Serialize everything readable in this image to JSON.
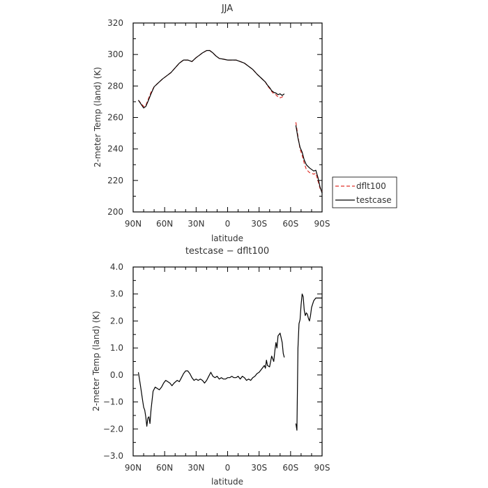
{
  "chart_data": [
    {
      "type": "line",
      "title": "JJA",
      "xlabel": "latitude",
      "ylabel": "2-meter Temp (land) (K)",
      "xlim": [
        90,
        -90
      ],
      "ylim": [
        200,
        320
      ],
      "x_tick_values": [
        90,
        60,
        30,
        0,
        -30,
        -60,
        -90
      ],
      "x_tick_labels": [
        "90N",
        "60N",
        "30N",
        "0",
        "30S",
        "60S",
        "90S"
      ],
      "y_tick_values": [
        200,
        220,
        240,
        260,
        280,
        300,
        320
      ],
      "y_tick_labels": [
        "200",
        "220",
        "240",
        "260",
        "280",
        "300",
        "320"
      ],
      "grid": false,
      "legend_position": "outside-right-bottom",
      "series": [
        {
          "name": "dflt100",
          "color": "#e0302a",
          "dash": true,
          "segments": [
            [
              [
                85,
                271
              ],
              [
                82,
                268.5
              ],
              [
                80,
                267
              ],
              [
                78,
                267.5
              ],
              [
                76,
                271
              ],
              [
                73,
                276
              ],
              [
                70,
                279.5
              ],
              [
                66,
                282
              ],
              [
                62,
                284.5
              ],
              [
                58,
                286.5
              ],
              [
                54,
                288.5
              ],
              [
                50,
                291.5
              ],
              [
                46,
                294.5
              ],
              [
                42,
                296.5
              ],
              [
                38,
                296.5
              ],
              [
                34,
                295.5
              ],
              [
                30,
                298
              ],
              [
                27,
                299.5
              ],
              [
                24,
                301
              ],
              [
                20,
                302.5
              ],
              [
                17,
                302.5
              ],
              [
                14,
                301
              ],
              [
                11,
                299
              ],
              [
                8,
                297.5
              ],
              [
                4,
                297
              ],
              [
                0,
                296.5
              ],
              [
                -4,
                296.5
              ],
              [
                -8,
                296.5
              ],
              [
                -12,
                295.5
              ],
              [
                -16,
                294.5
              ],
              [
                -20,
                292.5
              ],
              [
                -24,
                290.5
              ],
              [
                -28,
                287.5
              ],
              [
                -32,
                285
              ],
              [
                -36,
                282.5
              ],
              [
                -38,
                280
              ],
              [
                -40,
                278.5
              ],
              [
                -42,
                276.5
              ],
              [
                -44,
                275
              ],
              [
                -46,
                274.5
              ],
              [
                -48,
                273
              ],
              [
                -50,
                272.5
              ],
              [
                -52,
                273
              ],
              [
                -54,
                274
              ]
            ],
            [
              [
                -65,
                257
              ],
              [
                -67,
                248
              ],
              [
                -69,
                240
              ],
              [
                -71,
                236
              ],
              [
                -73,
                231
              ],
              [
                -75,
                227
              ],
              [
                -78,
                225
              ],
              [
                -82,
                224
              ],
              [
                -84,
                224.5
              ],
              [
                -86,
                220
              ],
              [
                -88,
                215
              ],
              [
                -90,
                213
              ]
            ]
          ]
        },
        {
          "name": "testcase",
          "color": "#000000",
          "dash": false,
          "segments": [
            [
              [
                85,
                271
              ],
              [
                82,
                268
              ],
              [
                80,
                266
              ],
              [
                78,
                267
              ],
              [
                76,
                270
              ],
              [
                73,
                275
              ],
              [
                70,
                279.5
              ],
              [
                66,
                282
              ],
              [
                62,
                284.5
              ],
              [
                58,
                286.5
              ],
              [
                54,
                288.5
              ],
              [
                50,
                291.5
              ],
              [
                46,
                294.5
              ],
              [
                42,
                296.5
              ],
              [
                38,
                296.5
              ],
              [
                34,
                295.5
              ],
              [
                30,
                298
              ],
              [
                27,
                299.5
              ],
              [
                24,
                301
              ],
              [
                20,
                302.5
              ],
              [
                17,
                302.5
              ],
              [
                14,
                301
              ],
              [
                11,
                299
              ],
              [
                8,
                297.5
              ],
              [
                4,
                297
              ],
              [
                0,
                296.5
              ],
              [
                -4,
                296.5
              ],
              [
                -8,
                296.5
              ],
              [
                -12,
                295.5
              ],
              [
                -16,
                294.5
              ],
              [
                -20,
                292.5
              ],
              [
                -24,
                290.5
              ],
              [
                -28,
                287.5
              ],
              [
                -32,
                285
              ],
              [
                -36,
                282.5
              ],
              [
                -38,
                280.5
              ],
              [
                -40,
                279
              ],
              [
                -42,
                277
              ],
              [
                -44,
                276
              ],
              [
                -46,
                275.5
              ],
              [
                -48,
                274.5
              ],
              [
                -50,
                275
              ],
              [
                -52,
                274
              ],
              [
                -54,
                275
              ]
            ],
            [
              [
                -65,
                255
              ],
              [
                -67,
                247
              ],
              [
                -69,
                241
              ],
              [
                -71,
                238
              ],
              [
                -73,
                233
              ],
              [
                -75,
                230
              ],
              [
                -78,
                228
              ],
              [
                -82,
                226
              ],
              [
                -84,
                226.5
              ],
              [
                -86,
                222
              ],
              [
                -88,
                216
              ],
              [
                -90,
                212
              ]
            ]
          ]
        }
      ]
    },
    {
      "type": "line",
      "title": "testcase − dflt100",
      "xlabel": "latitude",
      "ylabel": "2-meter Temp (land) (K)",
      "xlim": [
        90,
        -90
      ],
      "ylim": [
        -3.0,
        4.0
      ],
      "x_tick_values": [
        90,
        60,
        30,
        0,
        -30,
        -60,
        -90
      ],
      "x_tick_labels": [
        "90N",
        "60N",
        "30N",
        "0",
        "30S",
        "60S",
        "90S"
      ],
      "y_tick_values": [
        -3.0,
        -2.0,
        -1.0,
        0.0,
        1.0,
        2.0,
        3.0,
        4.0
      ],
      "y_tick_labels": [
        "−3.0",
        "−2.0",
        "−1.0",
        "0.0",
        "1.0",
        "2.0",
        "3.0",
        "4.0"
      ],
      "grid": false,
      "series": [
        {
          "color": "#000000",
          "dash": false,
          "segments": [
            [
              [
                85,
                0.1
              ],
              [
                83,
                -0.4
              ],
              [
                81,
                -0.95
              ],
              [
                80,
                -1.2
              ],
              [
                79,
                -1.3
              ],
              [
                78,
                -1.55
              ],
              [
                77,
                -1.9
              ],
              [
                76,
                -1.6
              ],
              [
                75,
                -1.55
              ],
              [
                74,
                -1.8
              ],
              [
                73,
                -1.3
              ],
              [
                71,
                -0.6
              ],
              [
                69,
                -0.45
              ],
              [
                67,
                -0.5
              ],
              [
                65,
                -0.55
              ],
              [
                63,
                -0.45
              ],
              [
                61,
                -0.3
              ],
              [
                59,
                -0.2
              ],
              [
                57,
                -0.25
              ],
              [
                55,
                -0.3
              ],
              [
                53,
                -0.4
              ],
              [
                51,
                -0.3
              ],
              [
                48,
                -0.2
              ],
              [
                46,
                -0.25
              ],
              [
                44,
                -0.1
              ],
              [
                42,
                0.05
              ],
              [
                40,
                0.15
              ],
              [
                38,
                0.15
              ],
              [
                36,
                0.05
              ],
              [
                34,
                -0.1
              ],
              [
                32,
                -0.2
              ],
              [
                30,
                -0.15
              ],
              [
                28,
                -0.2
              ],
              [
                26,
                -0.15
              ],
              [
                24,
                -0.2
              ],
              [
                22,
                -0.3
              ],
              [
                20,
                -0.2
              ],
              [
                18,
                -0.05
              ],
              [
                16,
                0.1
              ],
              [
                14,
                -0.05
              ],
              [
                12,
                -0.1
              ],
              [
                10,
                -0.05
              ],
              [
                8,
                -0.15
              ],
              [
                6,
                -0.1
              ],
              [
                4,
                -0.15
              ],
              [
                2,
                -0.15
              ],
              [
                0,
                -0.1
              ],
              [
                -2,
                -0.1
              ],
              [
                -4,
                -0.05
              ],
              [
                -6,
                -0.1
              ],
              [
                -8,
                -0.1
              ],
              [
                -10,
                -0.05
              ],
              [
                -12,
                -0.15
              ],
              [
                -14,
                -0.05
              ],
              [
                -16,
                -0.1
              ],
              [
                -18,
                -0.2
              ],
              [
                -20,
                -0.15
              ],
              [
                -22,
                -0.2
              ],
              [
                -24,
                -0.1
              ],
              [
                -26,
                -0.05
              ],
              [
                -28,
                0.05
              ],
              [
                -30,
                0.1
              ],
              [
                -32,
                0.2
              ],
              [
                -34,
                0.3
              ],
              [
                -35,
                0.35
              ],
              [
                -36,
                0.25
              ],
              [
                -37,
                0.55
              ],
              [
                -38,
                0.35
              ],
              [
                -40,
                0.3
              ],
              [
                -42,
                0.7
              ],
              [
                -44,
                0.5
              ],
              [
                -45,
                0.9
              ],
              [
                -46,
                1.2
              ],
              [
                -47,
                1.0
              ],
              [
                -48,
                1.45
              ],
              [
                -50,
                1.55
              ],
              [
                -52,
                1.2
              ],
              [
                -53,
                0.8
              ],
              [
                -54,
                0.65
              ]
            ],
            [
              [
                -65,
                -1.8
              ],
              [
                -66,
                -2.05
              ],
              [
                -67,
                1.0
              ],
              [
                -68,
                1.9
              ],
              [
                -69,
                2.05
              ],
              [
                -70,
                2.6
              ],
              [
                -71,
                3.0
              ],
              [
                -72,
                2.9
              ],
              [
                -73,
                2.4
              ],
              [
                -74,
                2.2
              ],
              [
                -75,
                2.3
              ],
              [
                -76,
                2.25
              ],
              [
                -77,
                2.1
              ],
              [
                -78,
                2.0
              ],
              [
                -79,
                2.2
              ],
              [
                -80,
                2.5
              ],
              [
                -82,
                2.75
              ],
              [
                -84,
                2.85
              ],
              [
                -86,
                2.85
              ],
              [
                -88,
                2.85
              ],
              [
                -90,
                2.85
              ]
            ]
          ]
        }
      ]
    }
  ]
}
